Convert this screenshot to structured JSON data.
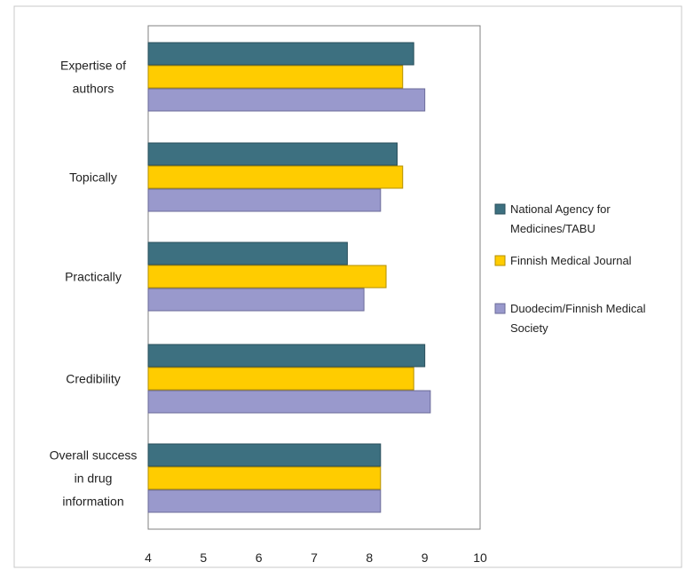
{
  "chart_data": {
    "type": "bar",
    "orientation": "horizontal",
    "categories": [
      [
        "Expertise of",
        "authors"
      ],
      [
        "Topically"
      ],
      [
        "Practically"
      ],
      [
        "Credibility"
      ],
      [
        "Overall success",
        "in drug",
        "information"
      ]
    ],
    "series": [
      {
        "name": "National Agency for Medicines/TABU",
        "legend_lines": [
          "National Agency for",
          "Medicines/TABU"
        ],
        "color": "#3d7080",
        "values": [
          8.8,
          8.5,
          7.6,
          9.0,
          8.2
        ]
      },
      {
        "name": "Finnish Medical Journal",
        "legend_lines": [
          "Finnish Medical Journal"
        ],
        "color": "#ffcc00",
        "values": [
          8.6,
          8.6,
          8.3,
          8.8,
          8.2
        ]
      },
      {
        "name": "Duodecim/Finnish Medical Society",
        "legend_lines": [
          "Duodecim/Finnish Medical",
          "Society"
        ],
        "color": "#9999cc",
        "values": [
          9.0,
          8.2,
          7.9,
          9.1,
          8.2
        ]
      }
    ],
    "xlim": [
      4,
      10
    ],
    "xticks": [
      "4",
      "5",
      "6",
      "7",
      "8",
      "9",
      "10"
    ],
    "grid": false,
    "legend_position": "right"
  }
}
